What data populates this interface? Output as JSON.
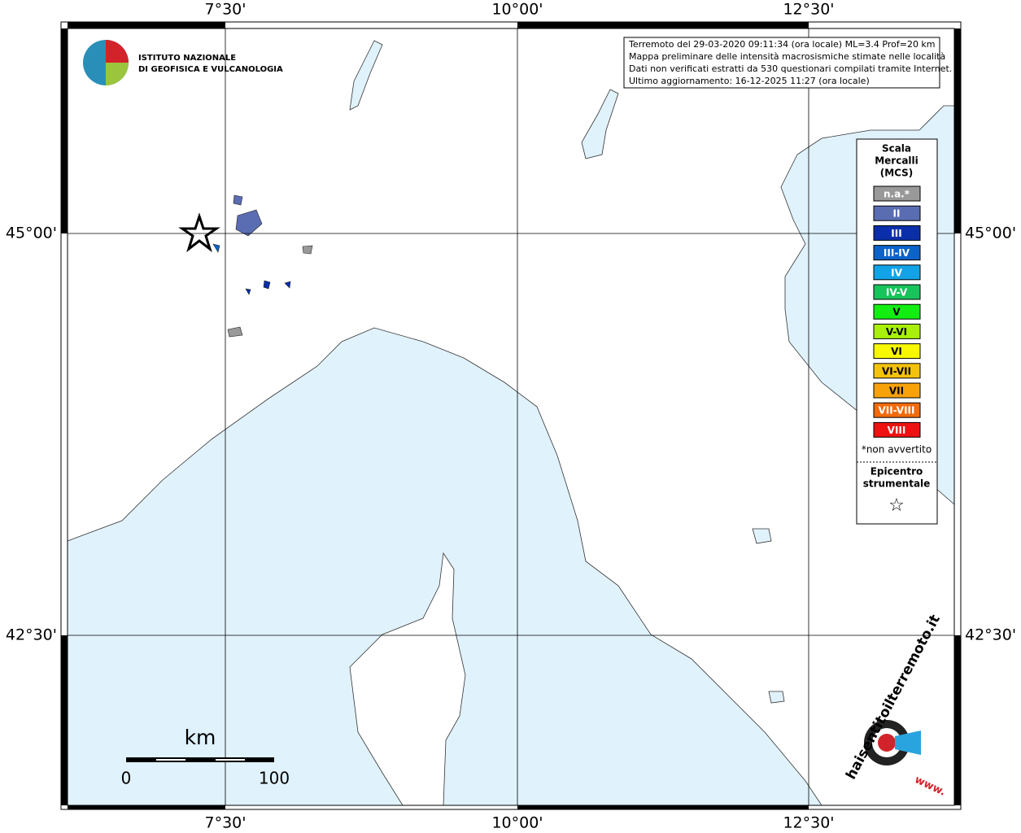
{
  "map": {
    "lon_labels": [
      "7°30'",
      "10°00'",
      "12°30'"
    ],
    "lat_labels": [
      "45°00'",
      "42°30'"
    ],
    "info": [
      "Terremoto del 29-03-2020 09:11:34 (ora locale) ML=3.4 Prof=20 km",
      "Mappa preliminare delle intensità macrosismiche stimate nelle località",
      "Dati non verificati estratti da 530 questionari compilati tramite Internet.",
      "Ultimo aggiornamento: 16-12-2025 11:27 (ora locale)"
    ],
    "institute": [
      "ISTITUTO NAZIONALE",
      "DI GEOFISICA E VULCANOLOGIA"
    ],
    "legend": {
      "title": [
        "Scala",
        "Mercalli",
        "(MCS)"
      ],
      "items": [
        {
          "label": "n.a.*",
          "color": "#999999"
        },
        {
          "label": "II",
          "color": "#5a6db2"
        },
        {
          "label": "III",
          "color": "#0a2fa8"
        },
        {
          "label": "III-IV",
          "color": "#0b62c9"
        },
        {
          "label": "IV",
          "color": "#12a3e6"
        },
        {
          "label": "IV-V",
          "color": "#17c35a"
        },
        {
          "label": "V",
          "color": "#12ee12"
        },
        {
          "label": "V-VI",
          "color": "#a8f00a"
        },
        {
          "label": "VI",
          "color": "#f8f800"
        },
        {
          "label": "VI-VII",
          "color": "#f4c20b"
        },
        {
          "label": "VII",
          "color": "#f8a20a"
        },
        {
          "label": "VII-VIII",
          "color": "#f36a0a"
        },
        {
          "label": "VIII",
          "color": "#ee1212"
        }
      ],
      "note": "*non avvertito",
      "epicenter": [
        "Epicentro",
        "strumentale"
      ],
      "star": "☆"
    },
    "scale": {
      "unit": "km",
      "start": "0",
      "end": "100"
    },
    "site": {
      "name": "haisentitoilterremoto.it",
      "prefix": "www."
    }
  }
}
